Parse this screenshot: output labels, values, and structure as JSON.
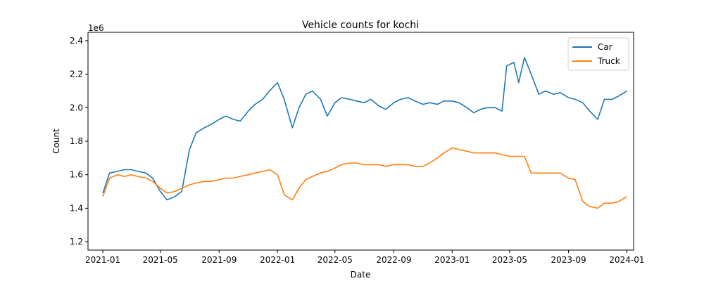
{
  "chart_data": {
    "type": "line",
    "title": "Vehicle counts for kochi",
    "xlabel": "Date",
    "ylabel": "Count",
    "y_multiplier_label": "1e6",
    "xlim": [
      "2020-12-01",
      "2024-01-15"
    ],
    "ylim": [
      1.15,
      2.45
    ],
    "x_ticks": [
      "2021-01",
      "2021-05",
      "2021-09",
      "2022-01",
      "2022-05",
      "2022-09",
      "2023-01",
      "2023-05",
      "2023-09",
      "2024-01"
    ],
    "y_ticks": [
      1.2,
      1.4,
      1.6,
      1.8,
      2.0,
      2.2,
      2.4
    ],
    "grid": false,
    "legend_position": "top-right",
    "series": [
      {
        "name": "Car",
        "color": "#1f77b4",
        "points": [
          [
            "2021-01-01",
            1.49
          ],
          [
            "2021-01-15",
            1.61
          ],
          [
            "2021-02-01",
            1.62
          ],
          [
            "2021-02-15",
            1.63
          ],
          [
            "2021-03-01",
            1.63
          ],
          [
            "2021-03-15",
            1.62
          ],
          [
            "2021-04-01",
            1.61
          ],
          [
            "2021-04-15",
            1.58
          ],
          [
            "2021-05-01",
            1.5
          ],
          [
            "2021-05-15",
            1.45
          ],
          [
            "2021-06-01",
            1.47
          ],
          [
            "2021-06-15",
            1.5
          ],
          [
            "2021-07-01",
            1.75
          ],
          [
            "2021-07-15",
            1.85
          ],
          [
            "2021-08-01",
            1.88
          ],
          [
            "2021-08-15",
            1.9
          ],
          [
            "2021-09-01",
            1.93
          ],
          [
            "2021-09-15",
            1.95
          ],
          [
            "2021-10-01",
            1.93
          ],
          [
            "2021-10-15",
            1.92
          ],
          [
            "2021-11-01",
            1.98
          ],
          [
            "2021-11-15",
            2.02
          ],
          [
            "2021-12-01",
            2.05
          ],
          [
            "2021-12-15",
            2.1
          ],
          [
            "2022-01-01",
            2.15
          ],
          [
            "2022-01-15",
            2.05
          ],
          [
            "2022-02-01",
            1.88
          ],
          [
            "2022-02-15",
            2.0
          ],
          [
            "2022-03-01",
            2.08
          ],
          [
            "2022-03-15",
            2.1
          ],
          [
            "2022-04-01",
            2.05
          ],
          [
            "2022-04-15",
            1.95
          ],
          [
            "2022-05-01",
            2.03
          ],
          [
            "2022-05-15",
            2.06
          ],
          [
            "2022-06-01",
            2.05
          ],
          [
            "2022-06-15",
            2.04
          ],
          [
            "2022-07-01",
            2.03
          ],
          [
            "2022-07-15",
            2.05
          ],
          [
            "2022-08-01",
            2.01
          ],
          [
            "2022-08-15",
            1.99
          ],
          [
            "2022-09-01",
            2.03
          ],
          [
            "2022-09-15",
            2.05
          ],
          [
            "2022-10-01",
            2.06
          ],
          [
            "2022-10-15",
            2.04
          ],
          [
            "2022-11-01",
            2.02
          ],
          [
            "2022-11-15",
            2.03
          ],
          [
            "2022-12-01",
            2.02
          ],
          [
            "2022-12-15",
            2.04
          ],
          [
            "2023-01-01",
            2.04
          ],
          [
            "2023-01-15",
            2.03
          ],
          [
            "2023-02-01",
            2.0
          ],
          [
            "2023-02-15",
            1.97
          ],
          [
            "2023-03-01",
            1.99
          ],
          [
            "2023-03-15",
            2.0
          ],
          [
            "2023-04-01",
            2.0
          ],
          [
            "2023-04-15",
            1.98
          ],
          [
            "2023-04-25",
            2.25
          ],
          [
            "2023-05-10",
            2.27
          ],
          [
            "2023-05-20",
            2.15
          ],
          [
            "2023-06-01",
            2.3
          ],
          [
            "2023-06-15",
            2.2
          ],
          [
            "2023-07-01",
            2.08
          ],
          [
            "2023-07-15",
            2.1
          ],
          [
            "2023-08-01",
            2.08
          ],
          [
            "2023-08-15",
            2.09
          ],
          [
            "2023-09-01",
            2.06
          ],
          [
            "2023-09-15",
            2.05
          ],
          [
            "2023-10-01",
            2.03
          ],
          [
            "2023-10-15",
            1.98
          ],
          [
            "2023-11-01",
            1.93
          ],
          [
            "2023-11-15",
            2.05
          ],
          [
            "2023-12-01",
            2.05
          ],
          [
            "2023-12-15",
            2.07
          ],
          [
            "2024-01-01",
            2.1
          ]
        ]
      },
      {
        "name": "Truck",
        "color": "#ff7f0e",
        "points": [
          [
            "2021-01-01",
            1.47
          ],
          [
            "2021-01-15",
            1.58
          ],
          [
            "2021-02-01",
            1.6
          ],
          [
            "2021-02-15",
            1.59
          ],
          [
            "2021-03-01",
            1.6
          ],
          [
            "2021-03-15",
            1.59
          ],
          [
            "2021-04-01",
            1.58
          ],
          [
            "2021-04-15",
            1.56
          ],
          [
            "2021-05-01",
            1.52
          ],
          [
            "2021-05-15",
            1.49
          ],
          [
            "2021-06-01",
            1.5
          ],
          [
            "2021-06-15",
            1.52
          ],
          [
            "2021-07-01",
            1.54
          ],
          [
            "2021-07-15",
            1.55
          ],
          [
            "2021-08-01",
            1.56
          ],
          [
            "2021-08-15",
            1.56
          ],
          [
            "2021-09-01",
            1.57
          ],
          [
            "2021-09-15",
            1.58
          ],
          [
            "2021-10-01",
            1.58
          ],
          [
            "2021-10-15",
            1.59
          ],
          [
            "2021-11-01",
            1.6
          ],
          [
            "2021-11-15",
            1.61
          ],
          [
            "2021-12-01",
            1.62
          ],
          [
            "2021-12-15",
            1.63
          ],
          [
            "2022-01-01",
            1.6
          ],
          [
            "2022-01-15",
            1.48
          ],
          [
            "2022-02-01",
            1.45
          ],
          [
            "2022-02-15",
            1.52
          ],
          [
            "2022-03-01",
            1.57
          ],
          [
            "2022-03-15",
            1.59
          ],
          [
            "2022-04-01",
            1.61
          ],
          [
            "2022-04-15",
            1.62
          ],
          [
            "2022-05-01",
            1.64
          ],
          [
            "2022-05-15",
            1.66
          ],
          [
            "2022-06-01",
            1.67
          ],
          [
            "2022-06-15",
            1.67
          ],
          [
            "2022-07-01",
            1.66
          ],
          [
            "2022-07-15",
            1.66
          ],
          [
            "2022-08-01",
            1.66
          ],
          [
            "2022-08-15",
            1.65
          ],
          [
            "2022-09-01",
            1.66
          ],
          [
            "2022-09-15",
            1.66
          ],
          [
            "2022-10-01",
            1.66
          ],
          [
            "2022-10-15",
            1.65
          ],
          [
            "2022-11-01",
            1.65
          ],
          [
            "2022-11-15",
            1.67
          ],
          [
            "2022-12-01",
            1.7
          ],
          [
            "2022-12-15",
            1.73
          ],
          [
            "2023-01-01",
            1.76
          ],
          [
            "2023-01-15",
            1.75
          ],
          [
            "2023-02-01",
            1.74
          ],
          [
            "2023-02-15",
            1.73
          ],
          [
            "2023-03-01",
            1.73
          ],
          [
            "2023-03-15",
            1.73
          ],
          [
            "2023-04-01",
            1.73
          ],
          [
            "2023-04-15",
            1.72
          ],
          [
            "2023-05-01",
            1.71
          ],
          [
            "2023-05-15",
            1.71
          ],
          [
            "2023-06-01",
            1.71
          ],
          [
            "2023-06-15",
            1.61
          ],
          [
            "2023-07-01",
            1.61
          ],
          [
            "2023-07-15",
            1.61
          ],
          [
            "2023-08-01",
            1.61
          ],
          [
            "2023-08-15",
            1.61
          ],
          [
            "2023-09-01",
            1.58
          ],
          [
            "2023-09-15",
            1.57
          ],
          [
            "2023-10-01",
            1.44
          ],
          [
            "2023-10-15",
            1.41
          ],
          [
            "2023-11-01",
            1.4
          ],
          [
            "2023-11-15",
            1.43
          ],
          [
            "2023-12-01",
            1.43
          ],
          [
            "2023-12-15",
            1.44
          ],
          [
            "2024-01-01",
            1.47
          ]
        ]
      }
    ]
  }
}
